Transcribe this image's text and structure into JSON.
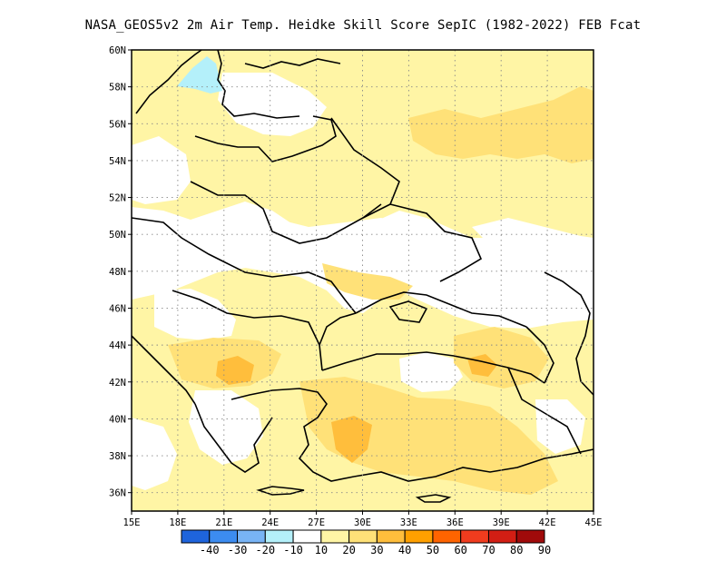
{
  "title": "NASA_GEOS5v2  2m Air Temp. Heidke Skill Score SepIC (1982-2022) FEB Fcat",
  "latitude_labels": [
    "60N",
    "58N",
    "56N",
    "54N",
    "52N",
    "50N",
    "48N",
    "46N",
    "44N",
    "42N",
    "40N",
    "38N",
    "36N"
  ],
  "longitude_labels": [
    "15E",
    "18E",
    "21E",
    "24E",
    "27E",
    "30E",
    "33E",
    "36E",
    "39E",
    "42E",
    "45E"
  ],
  "colorbar": {
    "labels": [
      "-40",
      "-30",
      "-20",
      "-10",
      "10",
      "20",
      "30",
      "40",
      "50",
      "60",
      "70",
      "80",
      "90"
    ],
    "colors": [
      "#1e64dc",
      "#3c8cf0",
      "#78b4f5",
      "#b4f0fa",
      "#ffffff",
      "#fff5a5",
      "#ffe178",
      "#ffbe3c",
      "#ffa000",
      "#ff6400",
      "#f03c1e",
      "#d21e14",
      "#a00a0a"
    ]
  },
  "map_data": {
    "lon_range": [
      15,
      45
    ],
    "lat_range": [
      35,
      60
    ],
    "grid": true,
    "projection": "lat-lon",
    "contour_field": "Heidke Skill Score"
  }
}
